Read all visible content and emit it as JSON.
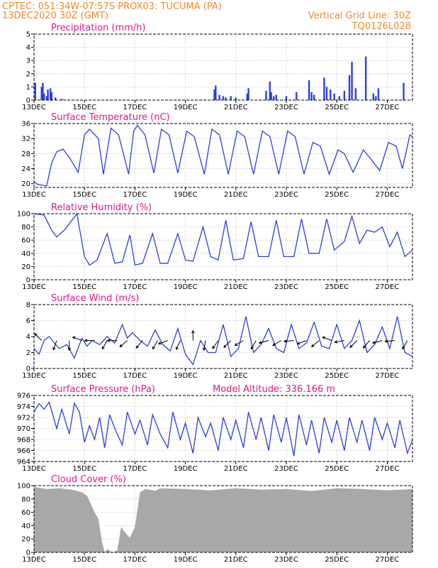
{
  "header": {
    "line1_left": "CPTEC:   051:34W-07:57S   PROX03: TUCUMA (PA)",
    "line2_left": "13DEC2020 30Z (GMT)",
    "line2_right": "Vertical Grid Line: 30Z",
    "line3_right": "TQ0126L028"
  },
  "colors": {
    "header": "#f08a2a",
    "title": "#e8148c",
    "series": "#2c3fdc",
    "cloud": "#a8a8a8"
  },
  "x_axis": {
    "ticks": [
      {
        "day": 0,
        "label": "13DEC"
      },
      {
        "day": 2,
        "label": "15DEC"
      },
      {
        "day": 4,
        "label": "17DEC"
      },
      {
        "day": 6,
        "label": "19DEC"
      },
      {
        "day": 8,
        "label": "21DEC"
      },
      {
        "day": 10,
        "label": "23DEC"
      },
      {
        "day": 12,
        "label": "25DEC"
      },
      {
        "day": 14,
        "label": "27DEC"
      }
    ],
    "range_days": [
      0,
      15
    ]
  },
  "chart_data": [
    {
      "type": "bar",
      "title": "Precipitation (mm/h)",
      "ylim": [
        0,
        5
      ],
      "yticks": [
        0,
        1,
        2,
        3,
        4,
        5
      ],
      "x_days": [
        0.05,
        0.3,
        0.35,
        0.4,
        0.5,
        0.55,
        0.65,
        0.7,
        0.85,
        1.1,
        7.15,
        7.2,
        7.35,
        7.5,
        7.6,
        7.8,
        8.0,
        8.45,
        8.5,
        9.2,
        9.35,
        9.4,
        9.5,
        9.6,
        10.0,
        10.4,
        10.9,
        11.0,
        11.1,
        11.5,
        11.6,
        11.75,
        11.9,
        12.1,
        12.3,
        12.5,
        12.6,
        12.75,
        13.15,
        13.45,
        13.55,
        13.65,
        14.65
      ],
      "values": [
        1.3,
        1.0,
        1.3,
        0.5,
        0.3,
        0.8,
        0.9,
        0.6,
        0.2,
        0.1,
        0.8,
        1.1,
        0.4,
        0.3,
        0.2,
        0.3,
        0.2,
        0.5,
        0.9,
        0.7,
        1.4,
        0.6,
        0.3,
        0.4,
        0.3,
        0.6,
        1.5,
        0.6,
        0.4,
        1.7,
        1.0,
        0.8,
        0.5,
        0.3,
        0.7,
        1.9,
        2.9,
        0.9,
        3.3,
        0.5,
        0.3,
        0.9,
        1.3
      ]
    },
    {
      "type": "line",
      "title": "Surface Temperature (nC)",
      "ylim": [
        19,
        36
      ],
      "yticks": [
        20,
        24,
        28,
        32,
        36
      ],
      "x": [
        0,
        0.15,
        0.5,
        0.7,
        0.9,
        1.15,
        1.45,
        1.75,
        2.0,
        2.2,
        2.55,
        2.75,
        3.05,
        3.35,
        3.75,
        3.95,
        4.1,
        4.4,
        4.75,
        5.05,
        5.35,
        5.7,
        6.05,
        6.35,
        6.75,
        7.05,
        7.35,
        7.7,
        8.05,
        8.35,
        8.7,
        9.05,
        9.35,
        9.7,
        10.05,
        10.35,
        10.7,
        11.05,
        11.35,
        11.7,
        12.05,
        12.3,
        12.65,
        13.05,
        13.3,
        13.7,
        14.05,
        14.35,
        14.6,
        14.9,
        15
      ],
      "values": [
        20.5,
        19.8,
        19.4,
        25.5,
        28.5,
        29.2,
        26.5,
        23.0,
        33.0,
        34.5,
        32.0,
        22.5,
        34.8,
        33.0,
        22.5,
        34.0,
        35.5,
        33.0,
        22.8,
        34.5,
        33.0,
        22.8,
        34.0,
        32.5,
        22.5,
        34.5,
        33.0,
        22.5,
        34.0,
        32.5,
        22.5,
        34.0,
        32.5,
        22.5,
        34.0,
        32.5,
        22.5,
        31.0,
        30.0,
        22.5,
        29.0,
        28.0,
        23.0,
        29.0,
        27.0,
        23.5,
        31.0,
        30.0,
        24.0,
        33.0,
        32.5
      ]
    },
    {
      "type": "line",
      "title": "Relative Humidity (%)",
      "ylim": [
        0,
        100
      ],
      "yticks": [
        0,
        20,
        40,
        60,
        80,
        100
      ],
      "x": [
        0,
        0.4,
        0.7,
        0.9,
        1.2,
        1.5,
        1.7,
        2.0,
        2.2,
        2.5,
        2.9,
        3.2,
        3.5,
        3.8,
        4.0,
        4.3,
        4.7,
        5.0,
        5.3,
        5.7,
        6.0,
        6.3,
        6.7,
        7.0,
        7.3,
        7.6,
        7.9,
        8.3,
        8.6,
        8.9,
        9.3,
        9.6,
        9.9,
        10.3,
        10.6,
        10.9,
        11.3,
        11.6,
        11.9,
        12.3,
        12.6,
        12.9,
        13.2,
        13.5,
        13.8,
        14.1,
        14.4,
        14.7,
        15
      ],
      "values": [
        100,
        98,
        75,
        65,
        75,
        90,
        100,
        35,
        22,
        30,
        70,
        25,
        27,
        68,
        22,
        25,
        70,
        25,
        25,
        70,
        30,
        28,
        80,
        35,
        30,
        90,
        30,
        32,
        88,
        35,
        35,
        90,
        35,
        35,
        92,
        40,
        40,
        92,
        45,
        58,
        96,
        55,
        75,
        72,
        80,
        50,
        72,
        35,
        45
      ]
    },
    {
      "type": "line",
      "title": "Surface Wind (m/s)",
      "ylim": [
        0,
        8
      ],
      "yticks": [
        0,
        2,
        4,
        6,
        8
      ],
      "x": [
        0,
        0.2,
        0.4,
        0.6,
        0.8,
        1.0,
        1.3,
        1.6,
        1.9,
        2.1,
        2.3,
        2.6,
        2.9,
        3.2,
        3.5,
        3.7,
        3.9,
        4.2,
        4.5,
        4.8,
        5.1,
        5.4,
        5.7,
        6.0,
        6.3,
        6.6,
        6.9,
        7.2,
        7.5,
        7.8,
        8.1,
        8.4,
        8.7,
        9.0,
        9.3,
        9.6,
        9.9,
        10.2,
        10.5,
        10.8,
        11.1,
        11.4,
        11.7,
        12.0,
        12.3,
        12.6,
        12.9,
        13.2,
        13.5,
        13.8,
        14.1,
        14.4,
        14.7,
        15
      ],
      "values": [
        2.5,
        1.8,
        3.5,
        4.0,
        3.2,
        2.5,
        3.0,
        1.3,
        3.8,
        2.8,
        3.5,
        3.0,
        4.0,
        3.2,
        5.5,
        3.8,
        4.5,
        3.5,
        2.8,
        4.8,
        3.0,
        2.2,
        5.0,
        1.8,
        0.5,
        3.5,
        2.0,
        2.0,
        5.5,
        1.5,
        2.5,
        6.5,
        2.0,
        3.0,
        5.0,
        2.5,
        2.0,
        5.5,
        2.5,
        3.2,
        5.8,
        2.8,
        2.5,
        5.5,
        2.5,
        3.5,
        6.0,
        2.0,
        3.0,
        5.2,
        2.5,
        6.5,
        2.0,
        1.5
      ],
      "vectors": [
        {
          "day": 0.3,
          "angle": -135
        },
        {
          "day": 0.9,
          "angle": 110
        },
        {
          "day": 1.4,
          "angle": 90
        },
        {
          "day": 1.9,
          "angle": -160
        },
        {
          "day": 2.4,
          "angle": 180
        },
        {
          "day": 2.9,
          "angle": 120
        },
        {
          "day": 3.3,
          "angle": 180
        },
        {
          "day": 3.7,
          "angle": 140
        },
        {
          "day": 4.3,
          "angle": 130
        },
        {
          "day": 4.9,
          "angle": 120
        },
        {
          "day": 5.3,
          "angle": 160
        },
        {
          "day": 5.8,
          "angle": 115
        },
        {
          "day": 6.3,
          "angle": -90
        },
        {
          "day": 6.8,
          "angle": 100
        },
        {
          "day": 7.3,
          "angle": 125
        },
        {
          "day": 7.8,
          "angle": 135
        },
        {
          "day": 8.3,
          "angle": 150
        },
        {
          "day": 8.8,
          "angle": 120
        },
        {
          "day": 9.3,
          "angle": 165
        },
        {
          "day": 9.8,
          "angle": 150
        },
        {
          "day": 10.3,
          "angle": 175
        },
        {
          "day": 10.8,
          "angle": 160
        },
        {
          "day": 11.3,
          "angle": 140
        },
        {
          "day": 11.8,
          "angle": -160
        },
        {
          "day": 12.3,
          "angle": 170
        },
        {
          "day": 12.8,
          "angle": 135
        },
        {
          "day": 13.3,
          "angle": 130
        },
        {
          "day": 13.8,
          "angle": 165
        },
        {
          "day": 14.3,
          "angle": 175
        },
        {
          "day": 14.8,
          "angle": 120
        }
      ]
    },
    {
      "type": "line",
      "title": "Surface Pressure (hPa)",
      "subtitle": "Model Altitude: 336.166 m",
      "ylim": [
        964,
        976
      ],
      "yticks": [
        964,
        966,
        968,
        970,
        972,
        974,
        976
      ],
      "x": [
        0,
        0.2,
        0.4,
        0.6,
        0.9,
        1.1,
        1.4,
        1.6,
        1.8,
        2.0,
        2.2,
        2.4,
        2.6,
        2.8,
        3.0,
        3.2,
        3.5,
        3.7,
        4.0,
        4.2,
        4.5,
        4.7,
        5.0,
        5.3,
        5.5,
        5.8,
        6.0,
        6.3,
        6.5,
        6.8,
        7.0,
        7.3,
        7.5,
        7.8,
        8.0,
        8.3,
        8.5,
        8.8,
        9.0,
        9.3,
        9.5,
        9.8,
        10.0,
        10.3,
        10.5,
        10.8,
        11.0,
        11.3,
        11.5,
        11.8,
        12.0,
        12.3,
        12.5,
        12.8,
        13.0,
        13.3,
        13.5,
        13.8,
        14.0,
        14.3,
        14.5,
        14.8,
        15
      ],
      "values": [
        973,
        974.5,
        973.5,
        974.8,
        970,
        973.5,
        969,
        974.6,
        973,
        967.5,
        970.5,
        968,
        972,
        966.5,
        972.5,
        970,
        967,
        973,
        969,
        971.5,
        967,
        972.5,
        969,
        966.5,
        973,
        968,
        971,
        965.5,
        972,
        968.5,
        971,
        966,
        972,
        968,
        971.5,
        966.5,
        973,
        968,
        972,
        966,
        972.5,
        967.5,
        972,
        965,
        972.5,
        967,
        971.5,
        965.5,
        972,
        967.5,
        971.5,
        966,
        972,
        967.5,
        971.5,
        966,
        972,
        968,
        971,
        966.5,
        971.5,
        965.5,
        968
      ]
    },
    {
      "type": "area",
      "title": "Cloud Cover (%)",
      "ylim": [
        0,
        100
      ],
      "yticks": [
        0,
        20,
        40,
        60,
        80,
        100
      ],
      "x": [
        0,
        0.5,
        1.0,
        1.5,
        1.9,
        2.1,
        2.4,
        2.55,
        2.7,
        2.8,
        2.9,
        3.1,
        3.3,
        3.45,
        3.6,
        3.8,
        4.0,
        4.2,
        4.4,
        4.6,
        4.8,
        5.0,
        6.0,
        7.0,
        8.0,
        9.0,
        10.0,
        11.0,
        12.0,
        13.0,
        14.0,
        15.0
      ],
      "values": [
        98,
        95,
        96,
        94,
        90,
        85,
        60,
        50,
        15,
        0,
        5,
        0,
        3,
        38,
        30,
        22,
        38,
        90,
        95,
        94,
        92,
        96,
        95,
        93,
        96,
        94,
        95,
        92,
        96,
        95,
        93,
        95
      ]
    }
  ]
}
